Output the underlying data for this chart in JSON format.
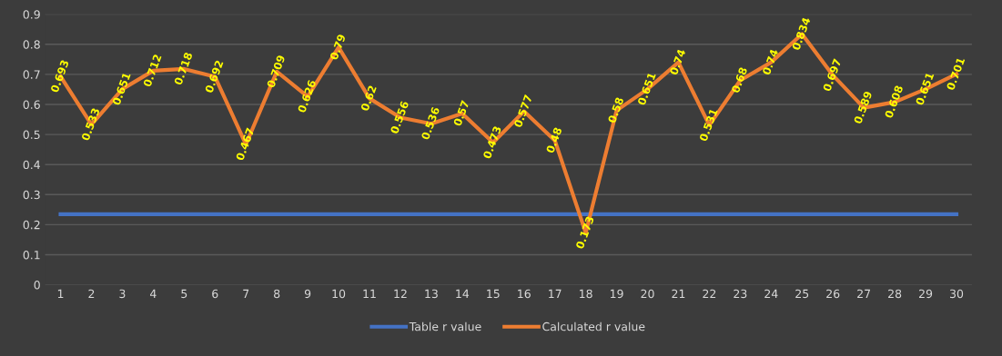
{
  "chart_data": {
    "type": "line",
    "categories": [
      "1",
      "2",
      "3",
      "4",
      "5",
      "6",
      "7",
      "8",
      "9",
      "10",
      "11",
      "12",
      "13",
      "14",
      "15",
      "16",
      "17",
      "18",
      "19",
      "20",
      "21",
      "22",
      "23",
      "24",
      "25",
      "26",
      "27",
      "28",
      "29",
      "30"
    ],
    "series": [
      {
        "name": "Table r value",
        "color": "#4472c4",
        "values": [
          0.235,
          0.235,
          0.235,
          0.235,
          0.235,
          0.235,
          0.235,
          0.235,
          0.235,
          0.235,
          0.235,
          0.235,
          0.235,
          0.235,
          0.235,
          0.235,
          0.235,
          0.235,
          0.235,
          0.235,
          0.235,
          0.235,
          0.235,
          0.235,
          0.235,
          0.235,
          0.235,
          0.235,
          0.235,
          0.235
        ]
      },
      {
        "name": "Calculated r value",
        "color": "#ed7d31",
        "values": [
          0.693,
          0.533,
          0.651,
          0.712,
          0.718,
          0.692,
          0.467,
          0.709,
          0.626,
          0.79,
          0.62,
          0.556,
          0.536,
          0.57,
          0.473,
          0.577,
          0.48,
          0.173,
          0.58,
          0.651,
          0.74,
          0.531,
          0.68,
          0.74,
          0.834,
          0.697,
          0.589,
          0.608,
          0.651,
          0.701
        ],
        "value_labels": [
          "0.693",
          "0.533",
          "0.651",
          "0.712",
          "0.718",
          "0.692",
          "0.467",
          "0.709",
          "0.626",
          "0.79",
          "0.62",
          "0.556",
          "0.536",
          "0.57",
          "0.473",
          "0.577",
          "0.48",
          "0.173",
          "0.58",
          "0.651",
          "0.74",
          "0.531",
          "0.68",
          "0.74",
          "0.834",
          "0.697",
          "0.589",
          "0.608",
          "0.651",
          "0.701"
        ]
      }
    ],
    "ylim": [
      0,
      0.9
    ],
    "yticks": [
      0,
      0.1,
      0.2,
      0.3,
      0.4,
      0.5,
      0.6,
      0.7,
      0.8,
      0.9
    ],
    "grid": "y",
    "legend": "bottom",
    "marker": "none",
    "line_style": "solid"
  }
}
